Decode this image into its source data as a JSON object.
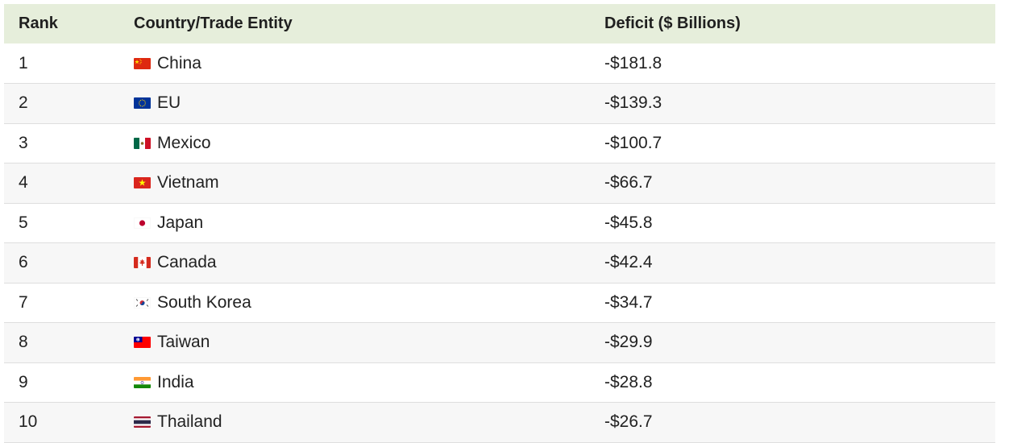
{
  "table": {
    "headers": {
      "rank": "Rank",
      "country": "Country/Trade Entity",
      "deficit": "Deficit ($ Billions)"
    },
    "rows": [
      {
        "rank": "1",
        "country": "China",
        "deficit": "-$181.8",
        "flag_icon": "china-flag-icon"
      },
      {
        "rank": "2",
        "country": "EU",
        "deficit": "-$139.3",
        "flag_icon": "eu-flag-icon"
      },
      {
        "rank": "3",
        "country": "Mexico",
        "deficit": "-$100.7",
        "flag_icon": "mexico-flag-icon"
      },
      {
        "rank": "4",
        "country": "Vietnam",
        "deficit": "-$66.7",
        "flag_icon": "vietnam-flag-icon"
      },
      {
        "rank": "5",
        "country": "Japan",
        "deficit": "-$45.8",
        "flag_icon": "japan-flag-icon"
      },
      {
        "rank": "6",
        "country": "Canada",
        "deficit": "-$42.4",
        "flag_icon": "canada-flag-icon"
      },
      {
        "rank": "7",
        "country": "South Korea",
        "deficit": "-$34.7",
        "flag_icon": "south-korea-flag-icon"
      },
      {
        "rank": "8",
        "country": "Taiwan",
        "deficit": "-$29.9",
        "flag_icon": "taiwan-flag-icon"
      },
      {
        "rank": "9",
        "country": "India",
        "deficit": "-$28.8",
        "flag_icon": "india-flag-icon"
      },
      {
        "rank": "10",
        "country": "Thailand",
        "deficit": "-$26.7",
        "flag_icon": "thailand-flag-icon"
      }
    ]
  },
  "colors": {
    "header_background": "#e6eedb",
    "row_alt_background": "#f7f7f7"
  }
}
